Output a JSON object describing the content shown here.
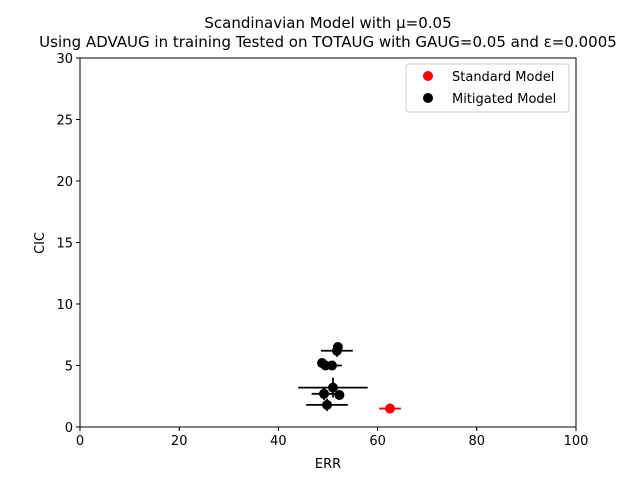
{
  "chart_data": {
    "type": "scatter",
    "title": "Scandinavian Model with μ=0.05",
    "subtitle": "Using ADVAUG in training Tested on TOTAUG with GAUG=0.05 and ε=0.0005",
    "xlabel": "ERR",
    "ylabel": "CIC",
    "xlim": [
      0,
      100
    ],
    "ylim": [
      0,
      30
    ],
    "xticks": [
      0,
      20,
      40,
      60,
      80,
      100
    ],
    "yticks": [
      0,
      5,
      10,
      15,
      20,
      25,
      30
    ],
    "grid": false,
    "legend_position": "top-right",
    "series": [
      {
        "name": "Standard Model",
        "color": "#ff0000",
        "points": [
          {
            "x": 62.5,
            "y": 1.5,
            "xerr": 2.2,
            "yerr": 0.4
          }
        ]
      },
      {
        "name": "Mitigated Model",
        "color": "#000000",
        "points": [
          {
            "x": 52.0,
            "y": 6.5,
            "xerr": 0.6,
            "yerr": 0.2
          },
          {
            "x": 51.8,
            "y": 6.2,
            "xerr": 3.2,
            "yerr": 0.5
          },
          {
            "x": 48.8,
            "y": 5.2,
            "xerr": 0.6,
            "yerr": 0.2
          },
          {
            "x": 49.5,
            "y": 5.0,
            "xerr": 0.6,
            "yerr": 0.2
          },
          {
            "x": 50.8,
            "y": 5.0,
            "xerr": 2.0,
            "yerr": 0.3
          },
          {
            "x": 51.0,
            "y": 3.2,
            "xerr": 7.0,
            "yerr": 0.8
          },
          {
            "x": 49.2,
            "y": 2.7,
            "xerr": 2.5,
            "yerr": 0.5
          },
          {
            "x": 52.3,
            "y": 2.6,
            "xerr": 0.6,
            "yerr": 0.2
          },
          {
            "x": 49.8,
            "y": 1.8,
            "xerr": 4.2,
            "yerr": 0.5
          }
        ]
      }
    ]
  }
}
